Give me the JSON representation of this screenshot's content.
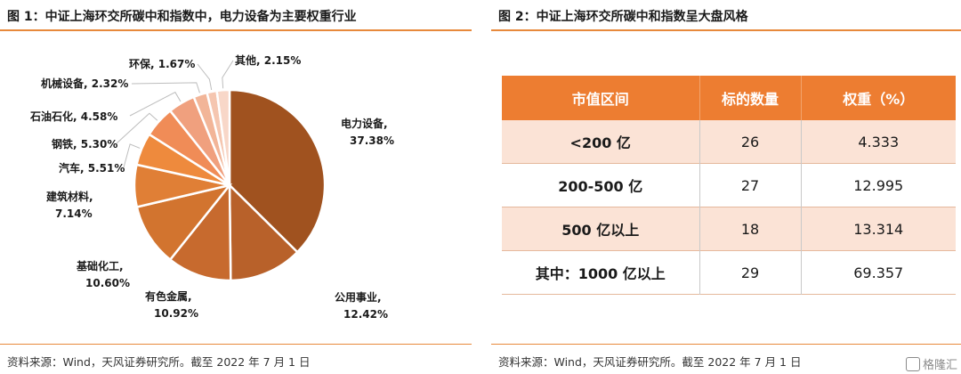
{
  "left_figure": {
    "title": "图 1：中证上海环交所碳中和指数中，电力设备为主要权重行业",
    "source": "资料来源：Wind，天风证券研究所。截至 2022 年 7 月 1 日"
  },
  "right_figure": {
    "title": "图 2：中证上海环交所碳中和指数呈大盘风格",
    "source": "资料来源：Wind，天风证券研究所。截至 2022 年 7 月 1 日"
  },
  "chart_data": [
    {
      "type": "pie",
      "title": "图 1：中证上海环交所碳中和指数中，电力设备为主要权重行业",
      "slices": [
        {
          "label": "电力设备,",
          "value_text": "37.38%",
          "value": 37.38,
          "color": "#a0521f"
        },
        {
          "label": "公用事业,",
          "value_text": "12.42%",
          "value": 12.42,
          "color": "#b8612a"
        },
        {
          "label": "有色金属,",
          "value_text": "10.92%",
          "value": 10.92,
          "color": "#c76a2e"
        },
        {
          "label": "基础化工,",
          "value_text": "10.60%",
          "value": 10.6,
          "color": "#d2742f"
        },
        {
          "label": "建筑材料,",
          "value_text": "7.14%",
          "value": 7.14,
          "color": "#e07f36"
        },
        {
          "label": "汽车, 5.51%",
          "value_text": "",
          "value": 5.51,
          "color": "#ee8a3d"
        },
        {
          "label": "钢铁, 5.30%",
          "value_text": "",
          "value": 5.3,
          "color": "#f08c57"
        },
        {
          "label": "石油石化, 4.58%",
          "value_text": "",
          "value": 4.58,
          "color": "#f0a07e"
        },
        {
          "label": "机械设备, 2.32%",
          "value_text": "",
          "value": 2.32,
          "color": "#f2b598"
        },
        {
          "label": "环保, 1.67%",
          "value_text": "",
          "value": 1.67,
          "color": "#f5c6b0"
        },
        {
          "label": "其他, 2.15%",
          "value_text": "",
          "value": 2.15,
          "color": "#f8d7c8"
        }
      ]
    },
    {
      "type": "table",
      "title": "图 2：中证上海环交所碳中和指数呈大盘风格",
      "columns": [
        "市值区间",
        "标的数量",
        "权重（%）"
      ],
      "rows": [
        [
          "<200 亿",
          "26",
          "4.333"
        ],
        [
          "200-500 亿",
          "27",
          "12.995"
        ],
        [
          "500 亿以上",
          "18",
          "13.314"
        ],
        [
          "其中：1000 亿以上",
          "29",
          "69.357"
        ]
      ]
    }
  ],
  "watermark": "格隆汇",
  "colors": {
    "accent": "#ed7d31",
    "table_header": "#ed7d31",
    "row_shade": "#fbe3d6"
  }
}
